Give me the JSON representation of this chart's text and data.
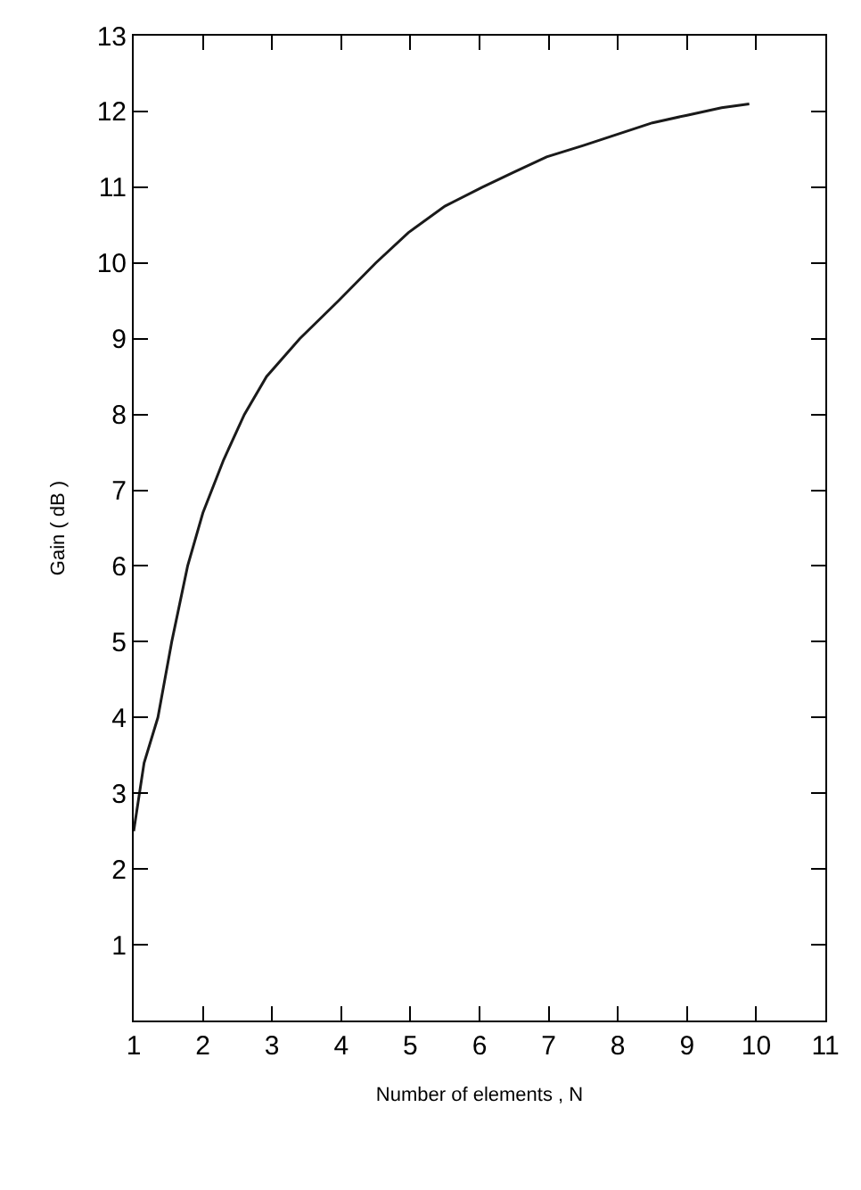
{
  "chart_data": {
    "type": "line",
    "xlabel": "Number of elements , N",
    "ylabel": "Gain ( dB )",
    "series": [
      {
        "color": "#1a1a1a",
        "x": [
          1,
          1.15,
          1.35,
          1.55,
          1.78,
          2.0,
          2.3,
          2.6,
          2.92,
          3.4,
          3.96,
          4.5,
          4.97,
          5.5,
          6.04,
          6.5,
          6.97,
          7.5,
          8.0,
          8.5,
          9.0,
          9.5,
          9.9
        ],
        "values": [
          2.5,
          3.4,
          4.0,
          5.0,
          6.0,
          6.7,
          7.4,
          8.0,
          8.5,
          9.0,
          9.5,
          10.0,
          10.4,
          10.75,
          11.0,
          11.2,
          11.4,
          11.55,
          11.7,
          11.85,
          11.95,
          12.05,
          12.1
        ]
      }
    ],
    "xlim": [
      1,
      11
    ],
    "xticks": [
      1,
      2,
      3,
      4,
      5,
      6,
      7,
      8,
      9,
      10,
      11
    ],
    "ylim": [
      0,
      13
    ],
    "yticks": [
      {
        "value": 0,
        "label": null
      },
      1,
      2,
      3,
      4,
      5,
      6,
      7,
      8,
      9,
      10,
      11,
      12,
      13
    ],
    "marker": "none",
    "line_style": "solid"
  }
}
